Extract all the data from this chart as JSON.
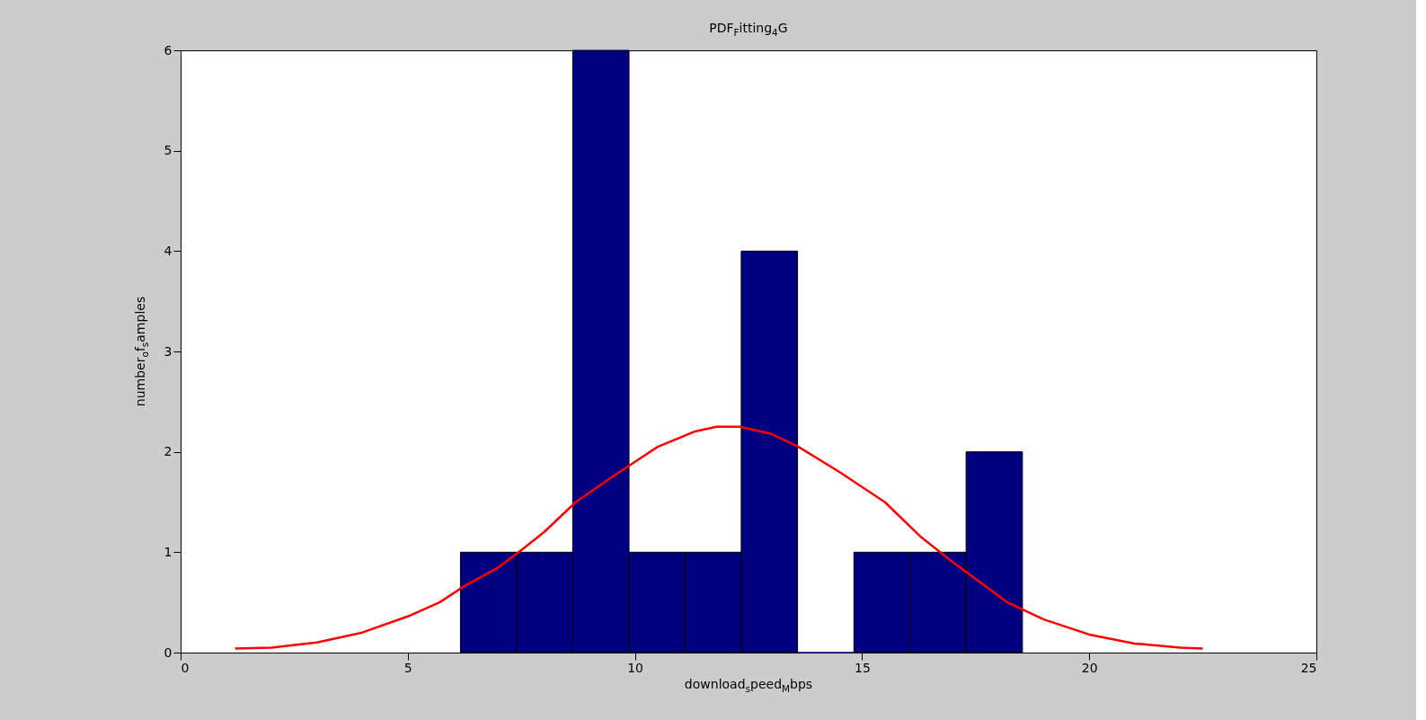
{
  "chart_data": {
    "type": "histogram",
    "title": "PDF$_{F}$itting$_{4}$G",
    "xlabel": "download$_{s}$peed$_{M}$bps",
    "ylabel": "number$_{o}$f$_{s}$amples",
    "bins": [
      6.16,
      7.4,
      8.63,
      9.87,
      11.11,
      12.34,
      13.58,
      14.82,
      16.05,
      17.29,
      18.53
    ],
    "values": [
      1,
      1,
      6,
      1,
      1,
      4,
      0,
      1,
      1,
      2
    ],
    "color": "#000080",
    "series": [
      {
        "type": "line",
        "color": "#ff0000",
        "x": [
          1.2,
          2,
          3,
          4,
          5,
          5.7,
          6.2,
          7,
          7.5,
          8,
          8.7,
          9.5,
          10.5,
          11.3,
          11.8,
          12.3,
          13,
          13.6,
          14.5,
          15.5,
          16.3,
          17,
          17.6,
          18.2,
          19,
          20,
          21,
          22,
          22.5
        ],
        "values": [
          0.04,
          0.05,
          0.1,
          0.2,
          0.36,
          0.5,
          0.65,
          0.85,
          1.02,
          1.2,
          1.5,
          1.75,
          2.05,
          2.2,
          2.25,
          2.25,
          2.18,
          2.05,
          1.8,
          1.5,
          1.15,
          0.9,
          0.7,
          0.5,
          0.33,
          0.18,
          0.09,
          0.05,
          0.04
        ]
      }
    ],
    "xlim": [
      0,
      25
    ],
    "xticks": [
      0,
      5,
      10,
      15,
      20,
      25
    ],
    "ylim": [
      0,
      6
    ],
    "yticks": [
      0,
      1,
      2,
      3,
      4,
      5,
      6
    ],
    "grid": false
  }
}
